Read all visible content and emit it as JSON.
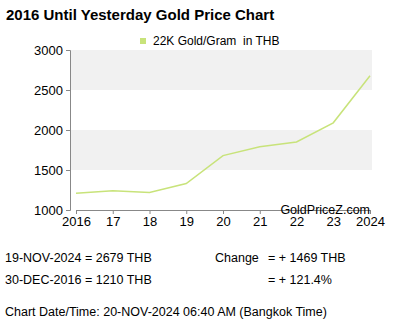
{
  "chart_data": {
    "type": "line",
    "title": "2016 Until Yesterday Gold Price Chart",
    "categories": [
      "2016",
      "17",
      "18",
      "19",
      "20",
      "21",
      "22",
      "23",
      "2024"
    ],
    "series": [
      {
        "name": "22K Gold/Gram  in THB",
        "color": "#c8e37a",
        "values": [
          1210,
          1240,
          1220,
          1330,
          1680,
          1790,
          1850,
          2090,
          2679
        ]
      }
    ],
    "ylim": [
      1000,
      3000
    ],
    "yticks": [
      1000,
      1500,
      2000,
      2500,
      3000
    ],
    "grid": true,
    "legend": "top",
    "annotations": [
      "GoldPriceZ.com",
      "19-NOV-2024 = 2679 THB",
      "30-DEC-2016 = 1210 THB",
      "Change",
      "= + 1469 THB",
      "= + 121.4%",
      "Chart Date/Time: 20-NOV-2024 06:40 AM (Bangkok Time)"
    ]
  }
}
